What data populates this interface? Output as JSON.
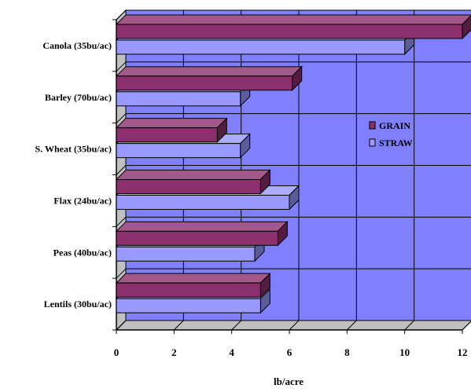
{
  "chart_data": {
    "type": "bar",
    "orientation": "horizontal",
    "three_d": true,
    "categories": [
      "Canola (35bu/ac)",
      "Barley (70bu/ac)",
      "S. Wheat (35bu/ac)",
      "Flax (24bu/ac)",
      "Peas (40bu/ac)",
      "Lentils (30bu/ac)"
    ],
    "series": [
      {
        "name": "GRAIN",
        "values": [
          12.0,
          6.1,
          3.5,
          5.0,
          5.6,
          5.0
        ],
        "color": "#8b2f6d"
      },
      {
        "name": "STRAW",
        "values": [
          10.0,
          4.3,
          4.3,
          6.0,
          4.8,
          5.0
        ],
        "color": "#9999ff"
      }
    ],
    "xlabel": "lb/acre",
    "xlim": [
      0,
      12
    ],
    "xticks": [
      0,
      2,
      4,
      6,
      8,
      10,
      12
    ],
    "grid": true,
    "legend_position": "right",
    "plot_background": "#8080ff",
    "gridline_color": "#000000"
  }
}
